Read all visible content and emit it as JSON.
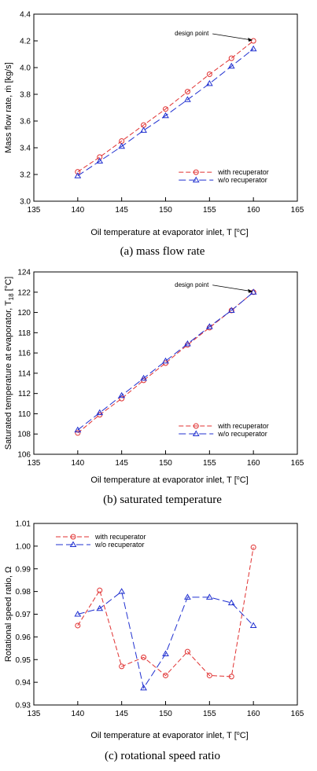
{
  "chart_data": [
    {
      "type": "line",
      "caption": "(a)  mass  flow  rate",
      "xlabel": "Oil temperature at evaporator inlet, T [",
      "xunit": "C]",
      "ylabel": "Mass flow rate, ṁ [kg/s]",
      "xlim": [
        135,
        165
      ],
      "ylim": [
        3.0,
        4.4
      ],
      "xticks": [
        135,
        140,
        145,
        150,
        155,
        160,
        165
      ],
      "yticks": [
        3.0,
        3.2,
        3.4,
        3.6,
        3.8,
        4.0,
        4.2,
        4.4
      ],
      "ytick_labels": [
        "3.0",
        "3.2",
        "3.4",
        "3.6",
        "3.8",
        "4.0",
        "4.2",
        "4.4"
      ],
      "annotation": {
        "text": "design point",
        "x": 160,
        "y": 4.2
      },
      "legend_position": "bottom-right",
      "series": [
        {
          "name": "with recuperator",
          "color": "#e03030",
          "marker": "circle",
          "x": [
            140,
            142.5,
            145,
            147.5,
            150,
            152.5,
            155,
            157.5,
            160
          ],
          "y": [
            3.22,
            3.33,
            3.45,
            3.57,
            3.69,
            3.82,
            3.95,
            4.07,
            4.2
          ]
        },
        {
          "name": "w/o recuperator",
          "color": "#2030d0",
          "marker": "triangle",
          "x": [
            140,
            142.5,
            145,
            147.5,
            150,
            152.5,
            155,
            157.5,
            160
          ],
          "y": [
            3.19,
            3.3,
            3.41,
            3.53,
            3.64,
            3.76,
            3.88,
            4.01,
            4.14
          ]
        }
      ]
    },
    {
      "type": "line",
      "caption": "(b)  saturated  temperature",
      "xlabel": "Oil temperature at evaporator inlet, T [",
      "xunit": "C]",
      "ylabel": "Saturated temperature at evaporator, T",
      "ylabel_sub": "18",
      "ylabel_unit": " [°C]",
      "xlim": [
        135,
        165
      ],
      "ylim": [
        106,
        124
      ],
      "xticks": [
        135,
        140,
        145,
        150,
        155,
        160,
        165
      ],
      "yticks": [
        106,
        108,
        110,
        112,
        114,
        116,
        118,
        120,
        122,
        124
      ],
      "ytick_labels": [
        "106",
        "108",
        "110",
        "112",
        "114",
        "116",
        "118",
        "120",
        "122",
        "124"
      ],
      "annotation": {
        "text": "design point",
        "x": 160,
        "y": 122
      },
      "legend_position": "bottom-right",
      "series": [
        {
          "name": "with recuperator",
          "color": "#e03030",
          "marker": "circle",
          "x": [
            140,
            142.5,
            145,
            147.5,
            150,
            152.5,
            155,
            157.5,
            160
          ],
          "y": [
            108.1,
            109.9,
            111.5,
            113.3,
            115.0,
            116.8,
            118.5,
            120.2,
            122.0
          ]
        },
        {
          "name": "w/o recuperator",
          "color": "#2030d0",
          "marker": "triangle",
          "x": [
            140,
            142.5,
            145,
            147.5,
            150,
            152.5,
            155,
            157.5,
            160
          ],
          "y": [
            108.4,
            110.1,
            111.8,
            113.5,
            115.2,
            116.9,
            118.6,
            120.2,
            122.0
          ]
        }
      ]
    },
    {
      "type": "line",
      "caption": "(c)  rotational  speed  ratio",
      "xlabel": "Oil temperature at evaporator inlet, T [",
      "xunit": "C]",
      "ylabel": "Rotational speed ratio, Ω",
      "xlim": [
        135,
        165
      ],
      "ylim": [
        0.93,
        1.01
      ],
      "xticks": [
        135,
        140,
        145,
        150,
        155,
        160,
        165
      ],
      "yticks": [
        0.93,
        0.94,
        0.95,
        0.96,
        0.97,
        0.98,
        0.99,
        1.0,
        1.01
      ],
      "ytick_labels": [
        "0.93",
        "0.94",
        "0.95",
        "0.96",
        "0.97",
        "0.98",
        "0.99",
        "1.00",
        "1.01"
      ],
      "legend_position": "top-left",
      "series": [
        {
          "name": "with recuperator",
          "color": "#e03030",
          "marker": "circle",
          "x": [
            140,
            142.5,
            145,
            147.5,
            150,
            152.5,
            155,
            157.5,
            160
          ],
          "y": [
            0.965,
            0.9805,
            0.947,
            0.951,
            0.943,
            0.9535,
            0.943,
            0.9425,
            0.9995
          ]
        },
        {
          "name": "w/o recuperator",
          "color": "#2030d0",
          "marker": "triangle",
          "x": [
            140,
            142.5,
            145,
            147.5,
            150,
            152.5,
            155,
            157.5,
            160
          ],
          "y": [
            0.97,
            0.9725,
            0.98,
            0.9375,
            0.9525,
            0.9775,
            0.9775,
            0.975,
            0.965
          ]
        }
      ]
    }
  ]
}
